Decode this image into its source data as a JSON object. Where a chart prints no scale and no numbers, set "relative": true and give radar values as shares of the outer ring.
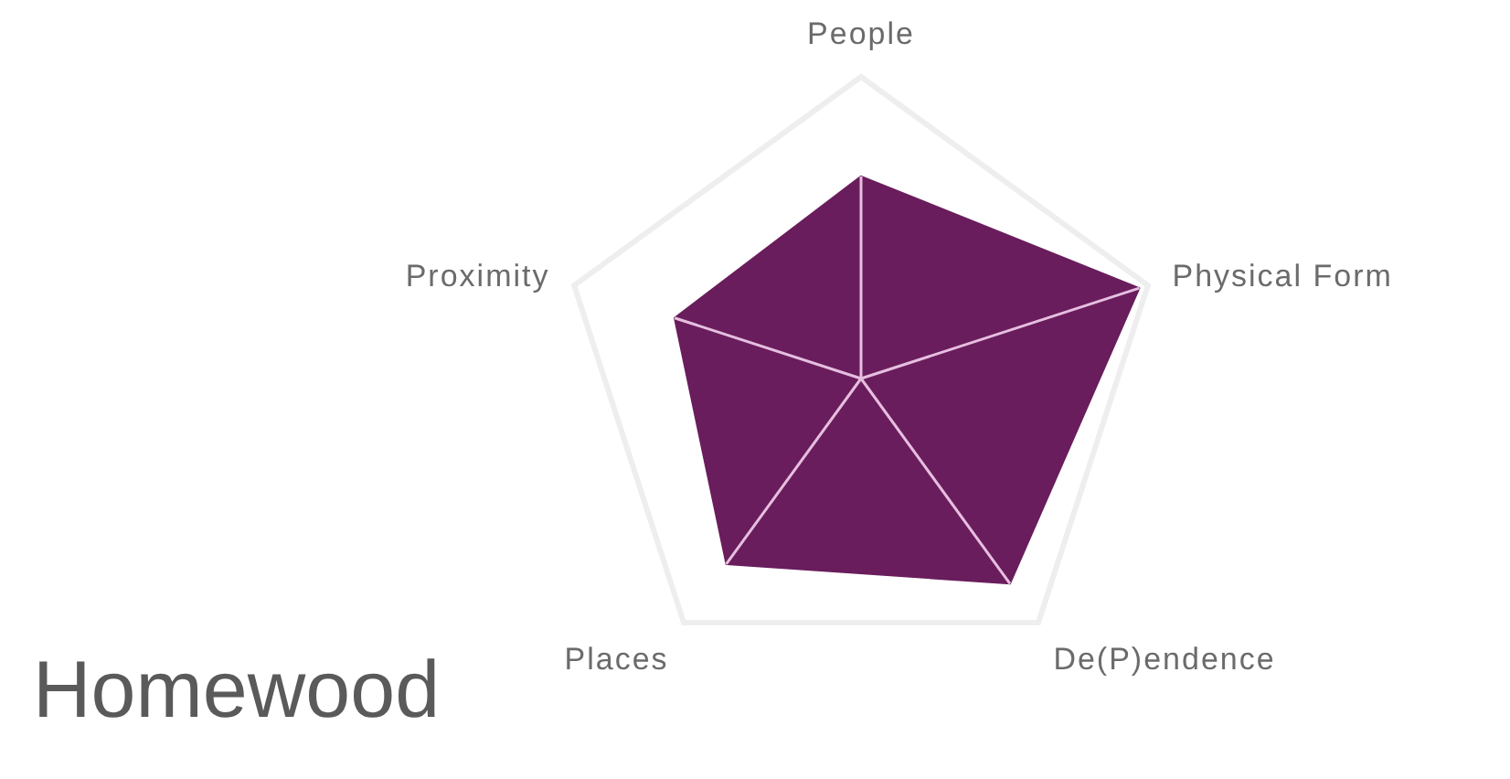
{
  "chart_data": {
    "type": "radar",
    "title": "Homewood",
    "relative": true,
    "categories": [
      "People",
      "Physical Form",
      "De(P)endence",
      "Places",
      "Proximity"
    ],
    "series": [
      {
        "color": "#6a1d5c",
        "values": [
          0.67,
          0.97,
          0.84,
          0.76,
          0.65
        ]
      }
    ]
  }
}
